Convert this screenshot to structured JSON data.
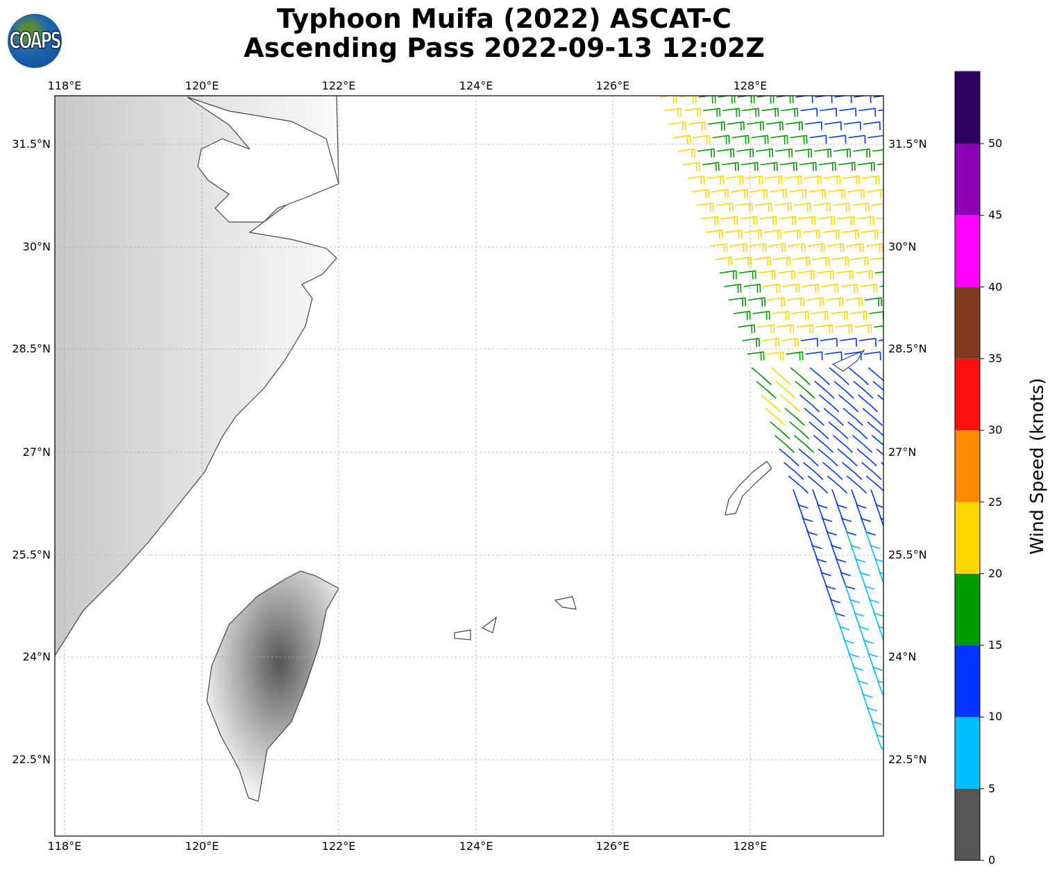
{
  "title_line1": "Typhoon Muifa (2022) ASCAT-C",
  "title_line2": "Ascending Pass 2022-09-13 12:02Z",
  "logo_text": "COAPS",
  "lon_ticks": [
    "118°E",
    "120°E",
    "122°E",
    "124°E",
    "126°E",
    "128°E"
  ],
  "lat_ticks": [
    "31.5°N",
    "30°N",
    "28.5°N",
    "27°N",
    "25.5°N",
    "24°N",
    "22.5°N"
  ],
  "colorbar": {
    "label": "Wind Speed (knots)",
    "ticks": [
      "0",
      "5",
      "10",
      "15",
      "20",
      "25",
      "30",
      "35",
      "40",
      "45",
      "50"
    ],
    "colors": [
      "#555555",
      "#00bfff",
      "#0033ff",
      "#009900",
      "#ffd700",
      "#ff8c00",
      "#ff1010",
      "#7f3b22",
      "#ff00ff",
      "#8b00b5",
      "#2b0060"
    ]
  }
}
